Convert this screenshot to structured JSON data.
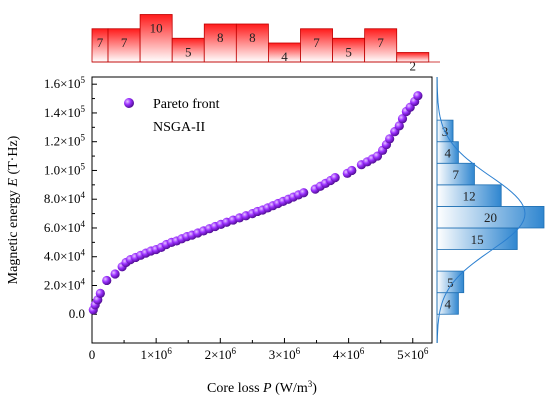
{
  "chart_data": {
    "type": "scatter",
    "xlabel_main": "Core loss ",
    "xlabel_var": "P",
    "xlabel_unit": " (W/m",
    "xlabel_sup": "3",
    "xlabel_end": ")",
    "ylabel_main": "Magnetic energy ",
    "ylabel_var": "E",
    "ylabel_unit": " (T·Hz)",
    "xlim": [
      0,
      5300000
    ],
    "ylim": [
      -20000,
      165000
    ],
    "xticks": [
      {
        "value": 0,
        "base": "0",
        "exp": ""
      },
      {
        "value": 1000000,
        "base": "1×10",
        "exp": "6"
      },
      {
        "value": 2000000,
        "base": "2×10",
        "exp": "6"
      },
      {
        "value": 3000000,
        "base": "3×10",
        "exp": "6"
      },
      {
        "value": 4000000,
        "base": "4×10",
        "exp": "6"
      },
      {
        "value": 5000000,
        "base": "5×10",
        "exp": "6"
      }
    ],
    "yticks": [
      {
        "value": 0,
        "base": "0.0",
        "exp": ""
      },
      {
        "value": 20000,
        "base": "2.0×10",
        "exp": "4"
      },
      {
        "value": 40000,
        "base": "4.0×10",
        "exp": "4"
      },
      {
        "value": 60000,
        "base": "6.0×10",
        "exp": "4"
      },
      {
        "value": 80000,
        "base": "8.0×10",
        "exp": "4"
      },
      {
        "value": 100000,
        "base": "1.0×10",
        "exp": "5"
      },
      {
        "value": 120000,
        "base": "1.2×10",
        "exp": "5"
      },
      {
        "value": 140000,
        "base": "1.4×10",
        "exp": "5"
      },
      {
        "value": 160000,
        "base": "1.6×10",
        "exp": "5"
      }
    ],
    "legend": {
      "marker_label": "Pareto front",
      "subtitle": "NSGA-II",
      "placement": "top-left"
    },
    "series": [
      {
        "name": "Pareto front",
        "color": "#8a2be2",
        "points": [
          [
            20000,
            3000
          ],
          [
            50000,
            6500
          ],
          [
            90000,
            10000
          ],
          [
            130000,
            14500
          ],
          [
            230000,
            23500
          ],
          [
            360000,
            28000
          ],
          [
            470000,
            33000
          ],
          [
            530000,
            36000
          ],
          [
            600000,
            38000
          ],
          [
            680000,
            39500
          ],
          [
            760000,
            41000
          ],
          [
            840000,
            42500
          ],
          [
            920000,
            44000
          ],
          [
            1000000,
            45000
          ],
          [
            1080000,
            46500
          ],
          [
            1160000,
            48500
          ],
          [
            1240000,
            50000
          ],
          [
            1320000,
            51000
          ],
          [
            1400000,
            52500
          ],
          [
            1480000,
            54000
          ],
          [
            1560000,
            55000
          ],
          [
            1650000,
            56500
          ],
          [
            1740000,
            58000
          ],
          [
            1830000,
            59500
          ],
          [
            1920000,
            61000
          ],
          [
            2010000,
            62500
          ],
          [
            2100000,
            64000
          ],
          [
            2200000,
            65500
          ],
          [
            2300000,
            67000
          ],
          [
            2400000,
            68500
          ],
          [
            2500000,
            70000
          ],
          [
            2580000,
            71500
          ],
          [
            2660000,
            72500
          ],
          [
            2740000,
            74000
          ],
          [
            2820000,
            75500
          ],
          [
            2900000,
            77000
          ],
          [
            2980000,
            78500
          ],
          [
            3060000,
            80000
          ],
          [
            3140000,
            81500
          ],
          [
            3220000,
            83000
          ],
          [
            3300000,
            84500
          ],
          [
            3480000,
            87000
          ],
          [
            3560000,
            89000
          ],
          [
            3640000,
            91000
          ],
          [
            3720000,
            93000
          ],
          [
            3790000,
            95000
          ],
          [
            3980000,
            98000
          ],
          [
            4050000,
            100000
          ],
          [
            4200000,
            104000
          ],
          [
            4290000,
            106000
          ],
          [
            4370000,
            108000
          ],
          [
            4450000,
            110000
          ],
          [
            4530000,
            114000
          ],
          [
            4590000,
            118000
          ],
          [
            4640000,
            122000
          ],
          [
            4720000,
            127000
          ],
          [
            4790000,
            131000
          ],
          [
            4840000,
            136000
          ],
          [
            4900000,
            141000
          ],
          [
            4960000,
            144000
          ],
          [
            5030000,
            148000
          ],
          [
            5080000,
            152000
          ]
        ]
      }
    ],
    "top_histogram": {
      "color": "#ff2a2a",
      "bins": [
        {
          "start": -250000,
          "end": 250000,
          "count": 7
        },
        {
          "start": 250000,
          "end": 750000,
          "count": 7
        },
        {
          "start": 750000,
          "end": 1250000,
          "count": 10
        },
        {
          "start": 1250000,
          "end": 1750000,
          "count": 5
        },
        {
          "start": 1750000,
          "end": 2250000,
          "count": 8
        },
        {
          "start": 2250000,
          "end": 2750000,
          "count": 8
        },
        {
          "start": 2750000,
          "end": 3250000,
          "count": 4
        },
        {
          "start": 3250000,
          "end": 3750000,
          "count": 7
        },
        {
          "start": 3750000,
          "end": 4250000,
          "count": 5
        },
        {
          "start": 4250000,
          "end": 4750000,
          "count": 7
        },
        {
          "start": 4750000,
          "end": 5250000,
          "count": 2
        }
      ]
    },
    "right_histogram": {
      "color": "#3d8fd1",
      "bins": [
        {
          "start": 0,
          "end": 15000,
          "count": 4
        },
        {
          "start": 15000,
          "end": 30000,
          "count": 5
        },
        {
          "start": 45000,
          "end": 60000,
          "count": 15
        },
        {
          "start": 60000,
          "end": 75000,
          "count": 20
        },
        {
          "start": 75000,
          "end": 90000,
          "count": 12
        },
        {
          "start": 90000,
          "end": 105000,
          "count": 7
        },
        {
          "start": 105000,
          "end": 120000,
          "count": 4
        },
        {
          "start": 120000,
          "end": 135000,
          "count": 3
        }
      ],
      "normal_curve": {
        "mean": 70000,
        "sd": 26000
      }
    }
  }
}
